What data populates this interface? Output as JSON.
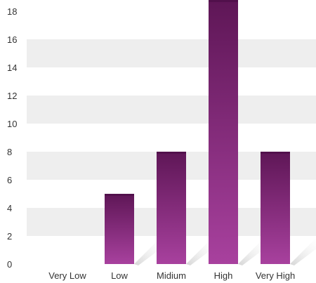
{
  "chart_data": {
    "type": "bar",
    "categories": [
      "Very Low",
      "Low",
      "Midium",
      "High",
      "Very High"
    ],
    "values": [
      0,
      5,
      8,
      19,
      8
    ],
    "ylim": [
      0,
      18
    ],
    "yticks": [
      0,
      2,
      4,
      6,
      8,
      10,
      12,
      14,
      16,
      18
    ],
    "grid": true,
    "title": "",
    "xlabel": "",
    "ylabel": "",
    "colors": {
      "bar_light": "#a8419e",
      "bar_dark": "#5e1656",
      "band": "#eeeeee",
      "shadow": "#d9d9d9"
    }
  }
}
